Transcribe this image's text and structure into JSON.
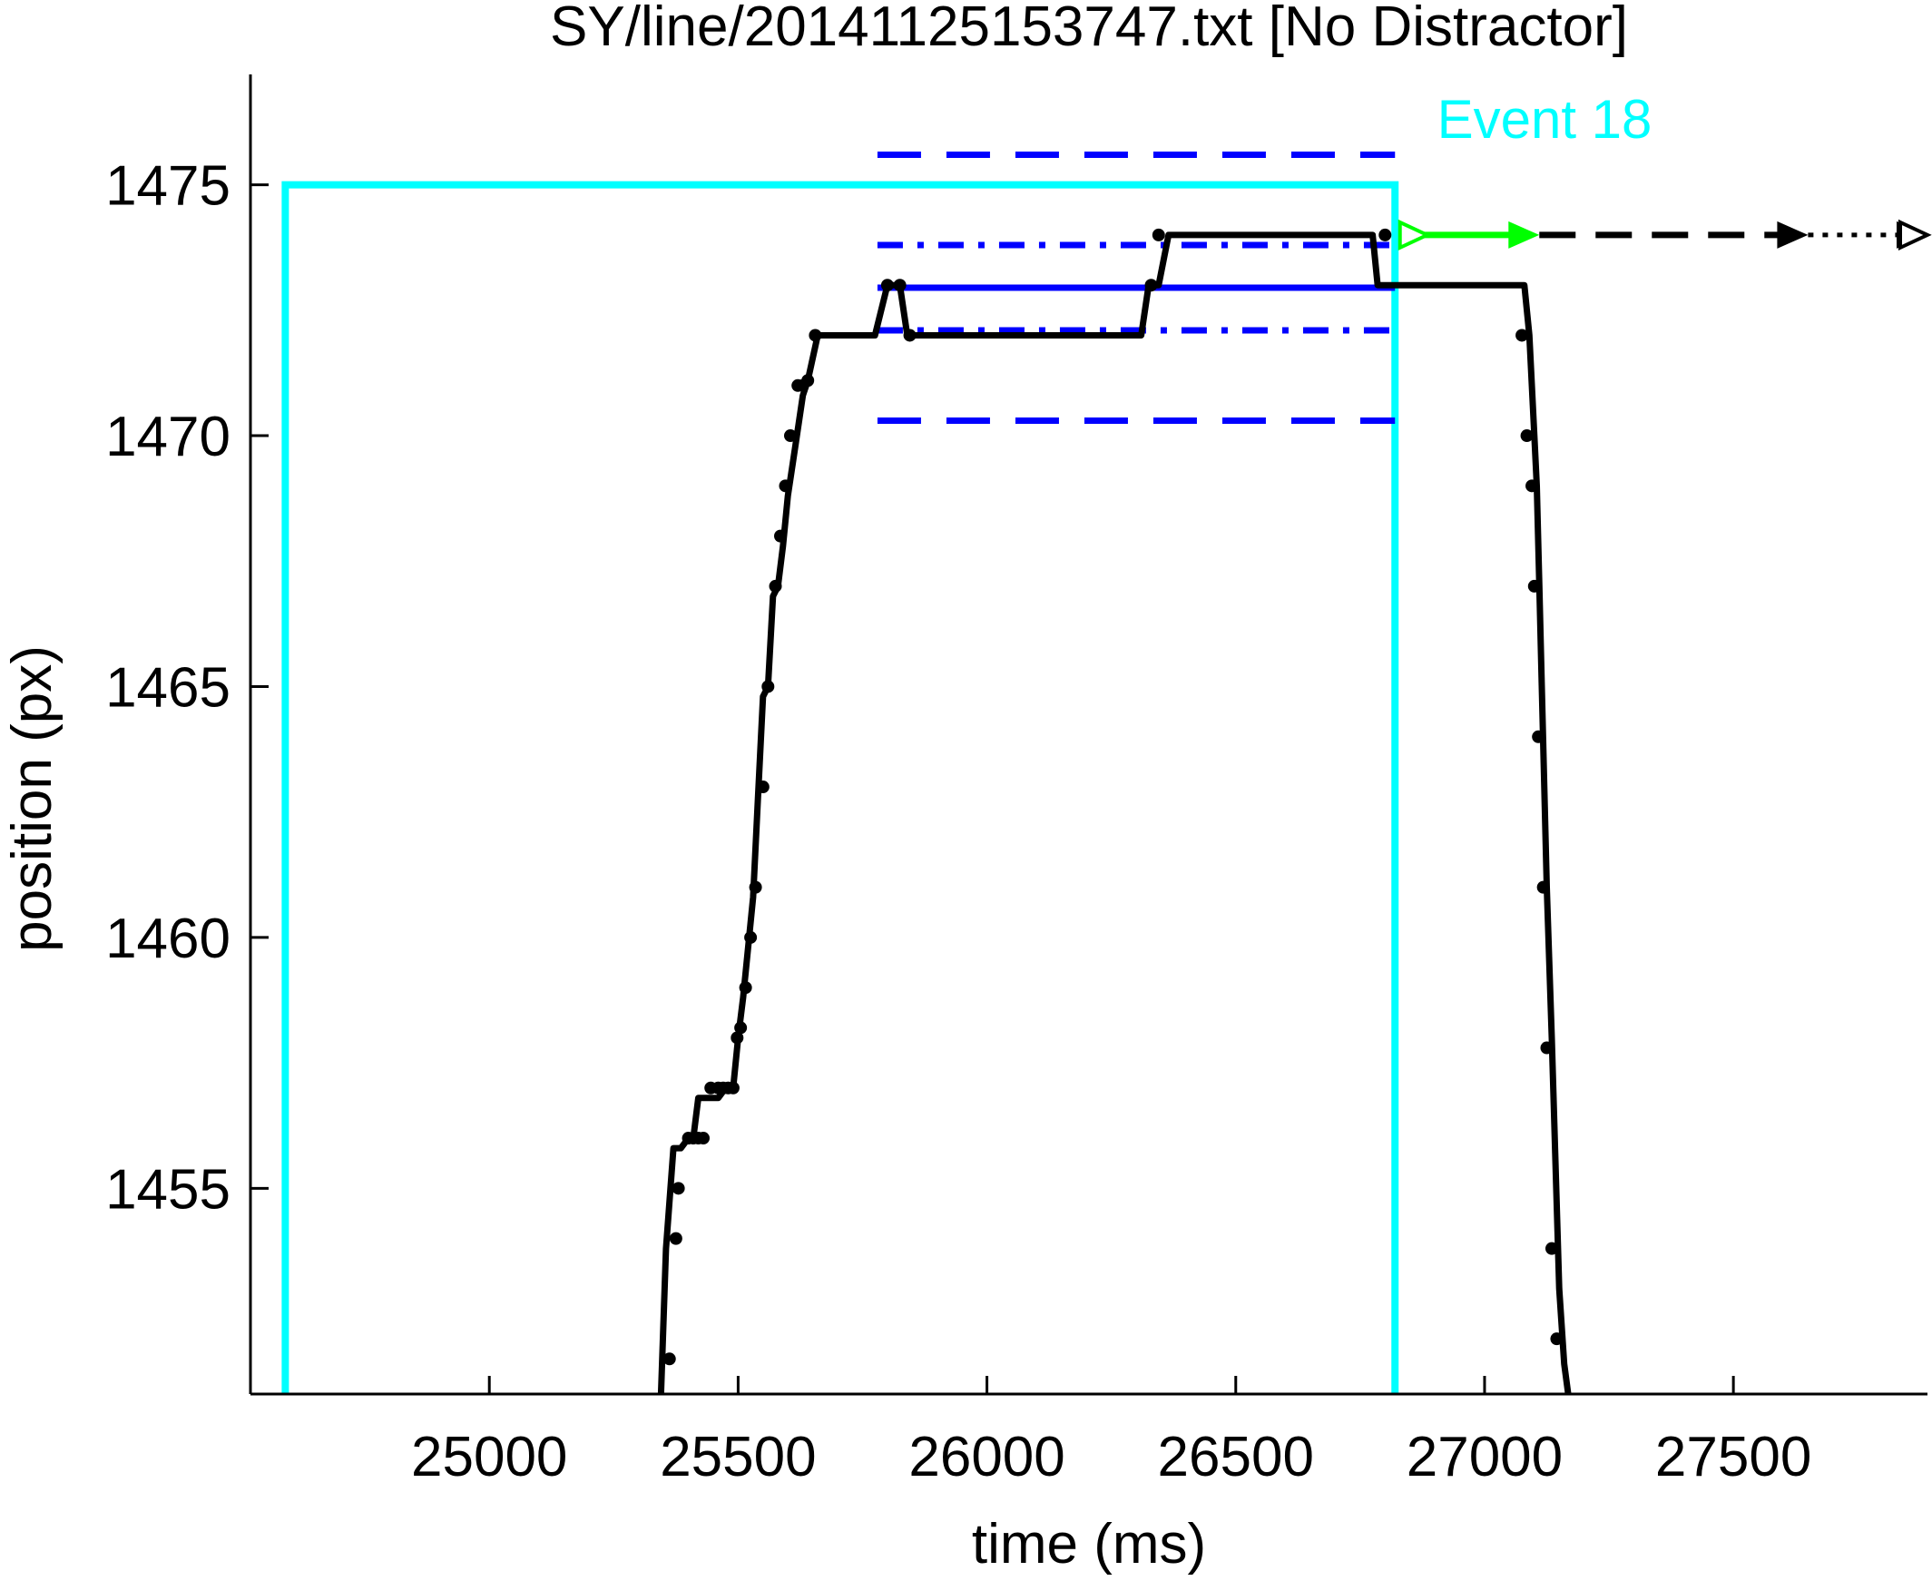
{
  "chart_data": {
    "type": "line",
    "title": "SY/line/20141125153747.txt [No Distractor]",
    "xlabel": "time (ms)",
    "ylabel": "position (px)",
    "xlim": [
      24520,
      27890
    ],
    "ylim": [
      1450.9,
      1477.2
    ],
    "xticks": [
      25000,
      25500,
      26000,
      26500,
      27000,
      27500
    ],
    "yticks": [
      1455,
      1460,
      1465,
      1470,
      1475
    ],
    "grid": false,
    "colors": {
      "trace": "#000000",
      "event": "#00ffff",
      "bands": "#0000ff",
      "arrow": "#00ff00"
    },
    "event": {
      "label": "Event 18",
      "x_start": 24590,
      "x_end": 26820,
      "y_top": 1475
    },
    "bands": {
      "x_start": 25780,
      "x_end": 26820,
      "mean": 1472.95,
      "inner": [
        1472.1,
        1473.8
      ],
      "outer": [
        1470.3,
        1475.6
      ]
    },
    "trace": {
      "x": [
        25345,
        25355,
        25370,
        25385,
        25400,
        25410,
        25420,
        25435,
        25460,
        25475,
        25490,
        25500,
        25510,
        25520,
        25530,
        25540,
        25550,
        25560,
        25570,
        25580,
        25590,
        25600,
        25615,
        25630,
        25640,
        25660,
        25700,
        25750,
        25775,
        25800,
        25825,
        25840,
        25870,
        26000,
        26200,
        26310,
        26325,
        26345,
        26365,
        26500,
        26650,
        26775,
        26785,
        26800,
        26850,
        27000,
        27080,
        27090,
        27100,
        27105,
        27110,
        27115,
        27125,
        27135,
        27150,
        27160,
        27168
      ],
      "y": [
        1450.9,
        1453.8,
        1455.8,
        1455.8,
        1456.0,
        1456.0,
        1456.8,
        1456.8,
        1456.8,
        1457.0,
        1457.0,
        1458.0,
        1458.8,
        1459.8,
        1460.8,
        1462.8,
        1464.8,
        1465.0,
        1466.8,
        1467.0,
        1467.8,
        1468.8,
        1469.8,
        1470.8,
        1471.1,
        1472.0,
        1472.0,
        1472.0,
        1472.0,
        1473.0,
        1473.0,
        1472.0,
        1472.0,
        1472.0,
        1472.0,
        1472.0,
        1473.0,
        1473.0,
        1474.0,
        1474.0,
        1474.0,
        1474.0,
        1473.0,
        1473.0,
        1473.0,
        1473.0,
        1473.0,
        1472.0,
        1470.0,
        1469.0,
        1467.0,
        1465.0,
        1461.0,
        1458.0,
        1453.0,
        1451.5,
        1450.9
      ]
    },
    "samples": {
      "x": [
        25362,
        25375,
        25380,
        25400,
        25410,
        25420,
        25430,
        25445,
        25460,
        25470,
        25480,
        25490,
        25498,
        25505,
        25515,
        25525,
        25535,
        25550,
        25560,
        25575,
        25585,
        25595,
        25605,
        25620,
        25630,
        25640,
        25655,
        25800,
        25825,
        25845,
        26330,
        26345,
        26800,
        27075,
        27085,
        27095,
        27100,
        27108,
        27118,
        27125,
        27135,
        27145
      ],
      "y": [
        1451.6,
        1454.0,
        1455.0,
        1456.0,
        1456.0,
        1456.0,
        1456.0,
        1457.0,
        1457.0,
        1457.0,
        1457.0,
        1457.0,
        1458.0,
        1458.2,
        1459.0,
        1460.0,
        1461.0,
        1463.0,
        1465.0,
        1467.0,
        1468.0,
        1469.0,
        1470.0,
        1471.0,
        1471.0,
        1471.1,
        1472.0,
        1473.0,
        1473.0,
        1472.0,
        1473.0,
        1474.0,
        1474.0,
        1472.0,
        1470.0,
        1469.0,
        1467.0,
        1464.0,
        1461.0,
        1457.8,
        1453.8,
        1452.0
      ]
    },
    "arrows": [
      {
        "style": "solid-green",
        "x_start": 26830,
        "x_end": 27110,
        "y": 1474.0
      },
      {
        "style": "dashed-black",
        "x_start": 27110,
        "x_end": 27650,
        "y": 1474.0
      },
      {
        "style": "dotted-black",
        "x_start": 27650,
        "x_end": 27890,
        "y": 1474.0
      }
    ]
  }
}
